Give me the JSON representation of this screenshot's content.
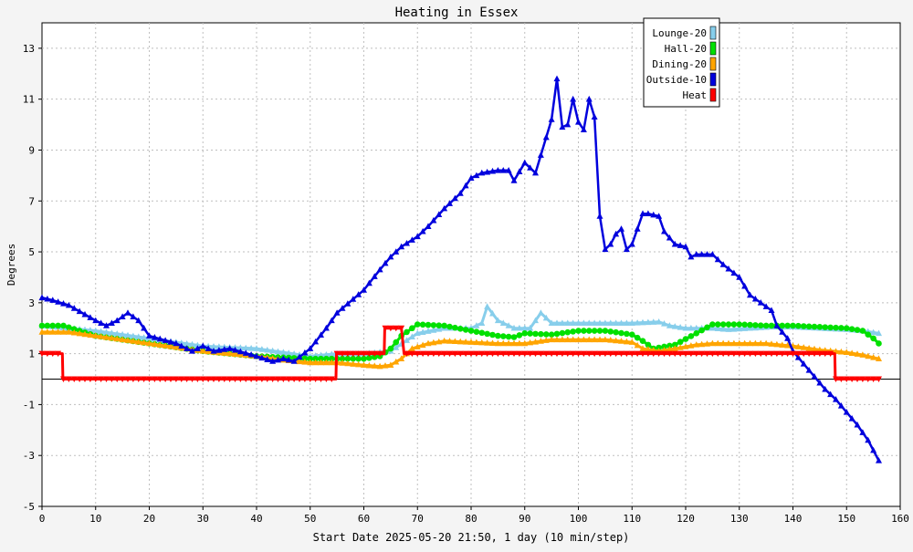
{
  "chart_data": {
    "type": "line",
    "title": "Heating in Essex",
    "xlabel": "Start Date 2025-05-20 21:50, 1 day (10 min/step)",
    "ylabel": "Degrees",
    "xlim": [
      0,
      160
    ],
    "ylim": [
      -5,
      14
    ],
    "x_ticks": [
      0,
      10,
      20,
      30,
      40,
      50,
      60,
      70,
      80,
      90,
      100,
      110,
      120,
      130,
      140,
      150,
      160
    ],
    "y_ticks": [
      -5,
      -3,
      -1,
      1,
      3,
      5,
      7,
      9,
      11,
      13
    ],
    "grid": true,
    "legend_position": "top-right",
    "zero_line": 0,
    "series": [
      {
        "name": "Lounge-20",
        "color": "#87ceeb",
        "marker": "triangle",
        "points": [
          [
            0,
            2.1
          ],
          [
            10,
            1.9
          ],
          [
            20,
            1.6
          ],
          [
            30,
            1.3
          ],
          [
            40,
            1.2
          ],
          [
            50,
            0.9
          ],
          [
            55,
            1.0
          ],
          [
            60,
            1.0
          ],
          [
            65,
            1.1
          ],
          [
            70,
            1.8
          ],
          [
            75,
            2.0
          ],
          [
            80,
            2.0
          ],
          [
            82,
            2.2
          ],
          [
            83,
            2.85
          ],
          [
            85,
            2.3
          ],
          [
            88,
            2.0
          ],
          [
            91,
            2.0
          ],
          [
            93,
            2.6
          ],
          [
            95,
            2.2
          ],
          [
            100,
            2.2
          ],
          [
            110,
            2.2
          ],
          [
            115,
            2.25
          ],
          [
            117,
            2.1
          ],
          [
            120,
            2.0
          ],
          [
            125,
            2.0
          ],
          [
            128,
            1.95
          ],
          [
            132,
            2.0
          ],
          [
            136,
            2.05
          ],
          [
            140,
            2.05
          ],
          [
            145,
            2.0
          ],
          [
            150,
            1.95
          ],
          [
            153,
            1.9
          ],
          [
            156,
            1.8
          ]
        ]
      },
      {
        "name": "Hall-20",
        "color": "#00e000",
        "marker": "circle",
        "points": [
          [
            0,
            2.1
          ],
          [
            4,
            2.1
          ],
          [
            10,
            1.7
          ],
          [
            20,
            1.4
          ],
          [
            30,
            1.1
          ],
          [
            40,
            0.9
          ],
          [
            50,
            0.8
          ],
          [
            55,
            0.8
          ],
          [
            60,
            0.8
          ],
          [
            63,
            0.9
          ],
          [
            65,
            1.2
          ],
          [
            67,
            1.7
          ],
          [
            70,
            2.15
          ],
          [
            75,
            2.1
          ],
          [
            80,
            1.9
          ],
          [
            85,
            1.7
          ],
          [
            88,
            1.65
          ],
          [
            90,
            1.8
          ],
          [
            95,
            1.75
          ],
          [
            100,
            1.9
          ],
          [
            105,
            1.9
          ],
          [
            110,
            1.75
          ],
          [
            112,
            1.5
          ],
          [
            114,
            1.2
          ],
          [
            118,
            1.35
          ],
          [
            122,
            1.8
          ],
          [
            125,
            2.15
          ],
          [
            130,
            2.15
          ],
          [
            135,
            2.1
          ],
          [
            140,
            2.1
          ],
          [
            145,
            2.05
          ],
          [
            150,
            2.0
          ],
          [
            153,
            1.9
          ],
          [
            155,
            1.6
          ],
          [
            156,
            1.4
          ]
        ]
      },
      {
        "name": "Dining-20",
        "color": "#ffa500",
        "marker": "triangle",
        "points": [
          [
            0,
            1.85
          ],
          [
            5,
            1.85
          ],
          [
            10,
            1.7
          ],
          [
            20,
            1.4
          ],
          [
            30,
            1.1
          ],
          [
            40,
            0.9
          ],
          [
            45,
            0.75
          ],
          [
            50,
            0.65
          ],
          [
            55,
            0.65
          ],
          [
            60,
            0.55
          ],
          [
            63,
            0.5
          ],
          [
            65,
            0.55
          ],
          [
            67,
            0.8
          ],
          [
            69,
            1.2
          ],
          [
            72,
            1.4
          ],
          [
            75,
            1.5
          ],
          [
            80,
            1.45
          ],
          [
            85,
            1.4
          ],
          [
            90,
            1.4
          ],
          [
            95,
            1.55
          ],
          [
            100,
            1.55
          ],
          [
            105,
            1.55
          ],
          [
            110,
            1.45
          ],
          [
            112,
            1.2
          ],
          [
            115,
            1.1
          ],
          [
            118,
            1.2
          ],
          [
            122,
            1.35
          ],
          [
            125,
            1.4
          ],
          [
            130,
            1.4
          ],
          [
            135,
            1.4
          ],
          [
            140,
            1.3
          ],
          [
            145,
            1.15
          ],
          [
            150,
            1.05
          ],
          [
            153,
            0.95
          ],
          [
            156,
            0.8
          ]
        ]
      },
      {
        "name": "Outside-10",
        "color": "#0000dd",
        "marker": "triangle",
        "points": [
          [
            0,
            3.2
          ],
          [
            2,
            3.1
          ],
          [
            5,
            2.9
          ],
          [
            10,
            2.3
          ],
          [
            12,
            2.1
          ],
          [
            14,
            2.3
          ],
          [
            16,
            2.6
          ],
          [
            18,
            2.3
          ],
          [
            20,
            1.7
          ],
          [
            25,
            1.4
          ],
          [
            28,
            1.1
          ],
          [
            30,
            1.3
          ],
          [
            32,
            1.1
          ],
          [
            35,
            1.2
          ],
          [
            40,
            0.9
          ],
          [
            43,
            0.7
          ],
          [
            45,
            0.8
          ],
          [
            47,
            0.7
          ],
          [
            50,
            1.2
          ],
          [
            53,
            2.0
          ],
          [
            55,
            2.6
          ],
          [
            60,
            3.5
          ],
          [
            63,
            4.3
          ],
          [
            65,
            4.8
          ],
          [
            67,
            5.2
          ],
          [
            70,
            5.6
          ],
          [
            72,
            6.0
          ],
          [
            75,
            6.7
          ],
          [
            78,
            7.3
          ],
          [
            80,
            7.9
          ],
          [
            82,
            8.1
          ],
          [
            85,
            8.2
          ],
          [
            87,
            8.2
          ],
          [
            88,
            7.8
          ],
          [
            90,
            8.5
          ],
          [
            92,
            8.1
          ],
          [
            94,
            9.5
          ],
          [
            95,
            10.2
          ],
          [
            96,
            11.8
          ],
          [
            97,
            9.9
          ],
          [
            98,
            10.0
          ],
          [
            99,
            11.0
          ],
          [
            100,
            10.1
          ],
          [
            101,
            9.8
          ],
          [
            102,
            11.0
          ],
          [
            103,
            10.3
          ],
          [
            104,
            6.4
          ],
          [
            105,
            5.1
          ],
          [
            106,
            5.3
          ],
          [
            107,
            5.7
          ],
          [
            108,
            5.9
          ],
          [
            109,
            5.1
          ],
          [
            110,
            5.3
          ],
          [
            111,
            5.9
          ],
          [
            112,
            6.5
          ],
          [
            113,
            6.5
          ],
          [
            115,
            6.4
          ],
          [
            116,
            5.8
          ],
          [
            118,
            5.3
          ],
          [
            120,
            5.2
          ],
          [
            121,
            4.8
          ],
          [
            122,
            4.9
          ],
          [
            123,
            4.9
          ],
          [
            125,
            4.9
          ],
          [
            127,
            4.5
          ],
          [
            130,
            4.0
          ],
          [
            132,
            3.3
          ],
          [
            134,
            3.0
          ],
          [
            136,
            2.7
          ],
          [
            137,
            2.1
          ],
          [
            139,
            1.6
          ],
          [
            140,
            1.1
          ],
          [
            142,
            0.6
          ],
          [
            144,
            0.1
          ],
          [
            146,
            -0.4
          ],
          [
            148,
            -0.8
          ],
          [
            150,
            -1.3
          ],
          [
            152,
            -1.8
          ],
          [
            154,
            -2.4
          ],
          [
            155,
            -2.8
          ],
          [
            156,
            -3.2
          ]
        ]
      },
      {
        "name": "Heat",
        "color": "#ff0000",
        "marker": "triangle-down",
        "points": [
          [
            0,
            1
          ],
          [
            3.8,
            1
          ],
          [
            3.9,
            0
          ],
          [
            54.8,
            0
          ],
          [
            54.9,
            1
          ],
          [
            63.8,
            1
          ],
          [
            63.9,
            2
          ],
          [
            67,
            2
          ],
          [
            67.5,
            1
          ],
          [
            147.8,
            1
          ],
          [
            147.9,
            0
          ],
          [
            156,
            0
          ]
        ]
      }
    ]
  }
}
